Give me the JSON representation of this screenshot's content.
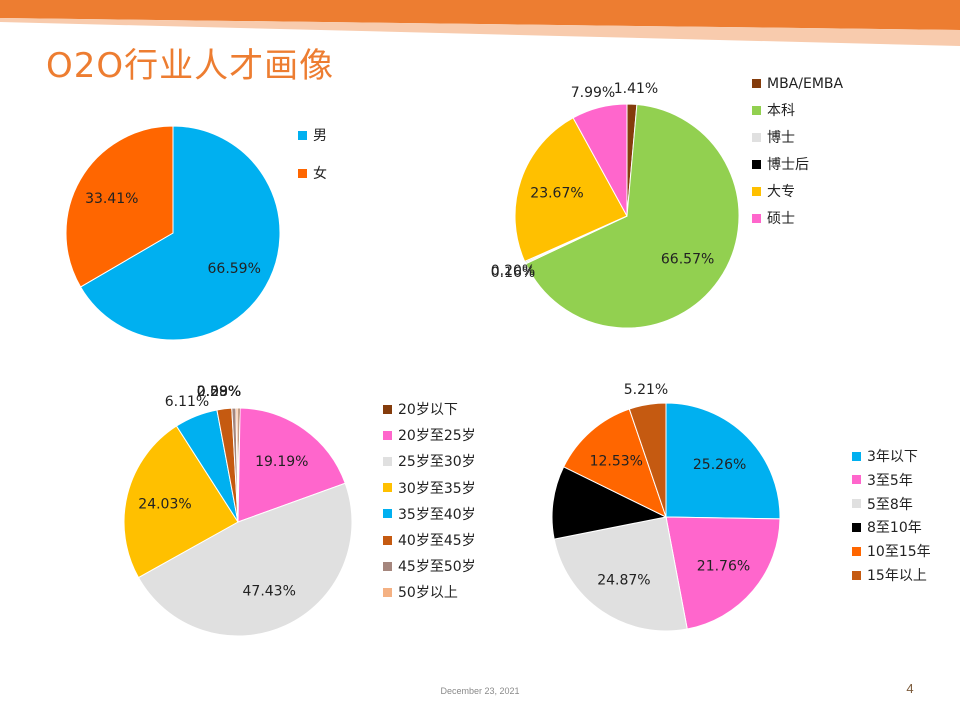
{
  "slide": {
    "title": "O2O行业人才画像",
    "date": "December 23, 2021",
    "page_number": "4",
    "accent": "#ED7D31"
  },
  "chart_data": [
    {
      "type": "pie",
      "id": "gender",
      "categories": [
        "男",
        "女"
      ],
      "values": [
        66.59,
        33.41
      ],
      "data_labels": [
        "66.59%",
        "33.41%"
      ],
      "colors": [
        "#00B0F0",
        "#FF6600"
      ],
      "legend_position": "right"
    },
    {
      "type": "pie",
      "id": "education",
      "categories": [
        "MBA/EMBA",
        "本科",
        "博士",
        "博士后",
        "大专",
        "硕士"
      ],
      "values": [
        1.41,
        66.57,
        0.2,
        0.16,
        23.67,
        7.99
      ],
      "data_labels": [
        "1.41%",
        "66.57%",
        "0.20%",
        "0.16%",
        "23.67%",
        "7.99%"
      ],
      "colors": [
        "#843C0C",
        "#92D050",
        "#E0E0E0",
        "#000000",
        "#FFC000",
        "#FF66CC"
      ],
      "legend_position": "right"
    },
    {
      "type": "pie",
      "id": "age",
      "categories": [
        "20岁以下",
        "20岁至25岁",
        "25岁至30岁",
        "30岁至35岁",
        "35岁至40岁",
        "40岁至45岁",
        "45岁至50岁",
        "50岁以上"
      ],
      "values": [
        0.29,
        19.19,
        47.43,
        24.03,
        6.11,
        2.09,
        0.58,
        0.29
      ],
      "data_labels": [
        "0.29%",
        "19.19%",
        "47.43%",
        "24.03%",
        "6.11%",
        "2.09%",
        "0.58%",
        "0.29%"
      ],
      "colors": [
        "#843C0C",
        "#FF66CC",
        "#E0E0E0",
        "#FFC000",
        "#00B0F0",
        "#C55A11",
        "#A5867D",
        "#F4B183"
      ],
      "legend_position": "right"
    },
    {
      "type": "pie",
      "id": "experience",
      "categories": [
        "3年以下",
        "3至5年",
        "5至8年",
        "8至10年",
        "10至15年",
        "15年以上"
      ],
      "values": [
        25.26,
        21.76,
        24.87,
        10.37,
        12.53,
        5.21
      ],
      "data_labels": [
        "25.26%",
        "21.76%",
        "24.87%",
        "",
        "12.53%",
        "5.21%"
      ],
      "colors": [
        "#00B0F0",
        "#FF66CC",
        "#E0E0E0",
        "#000000",
        "#FF6600",
        "#C55A11"
      ],
      "legend_position": "right"
    }
  ]
}
